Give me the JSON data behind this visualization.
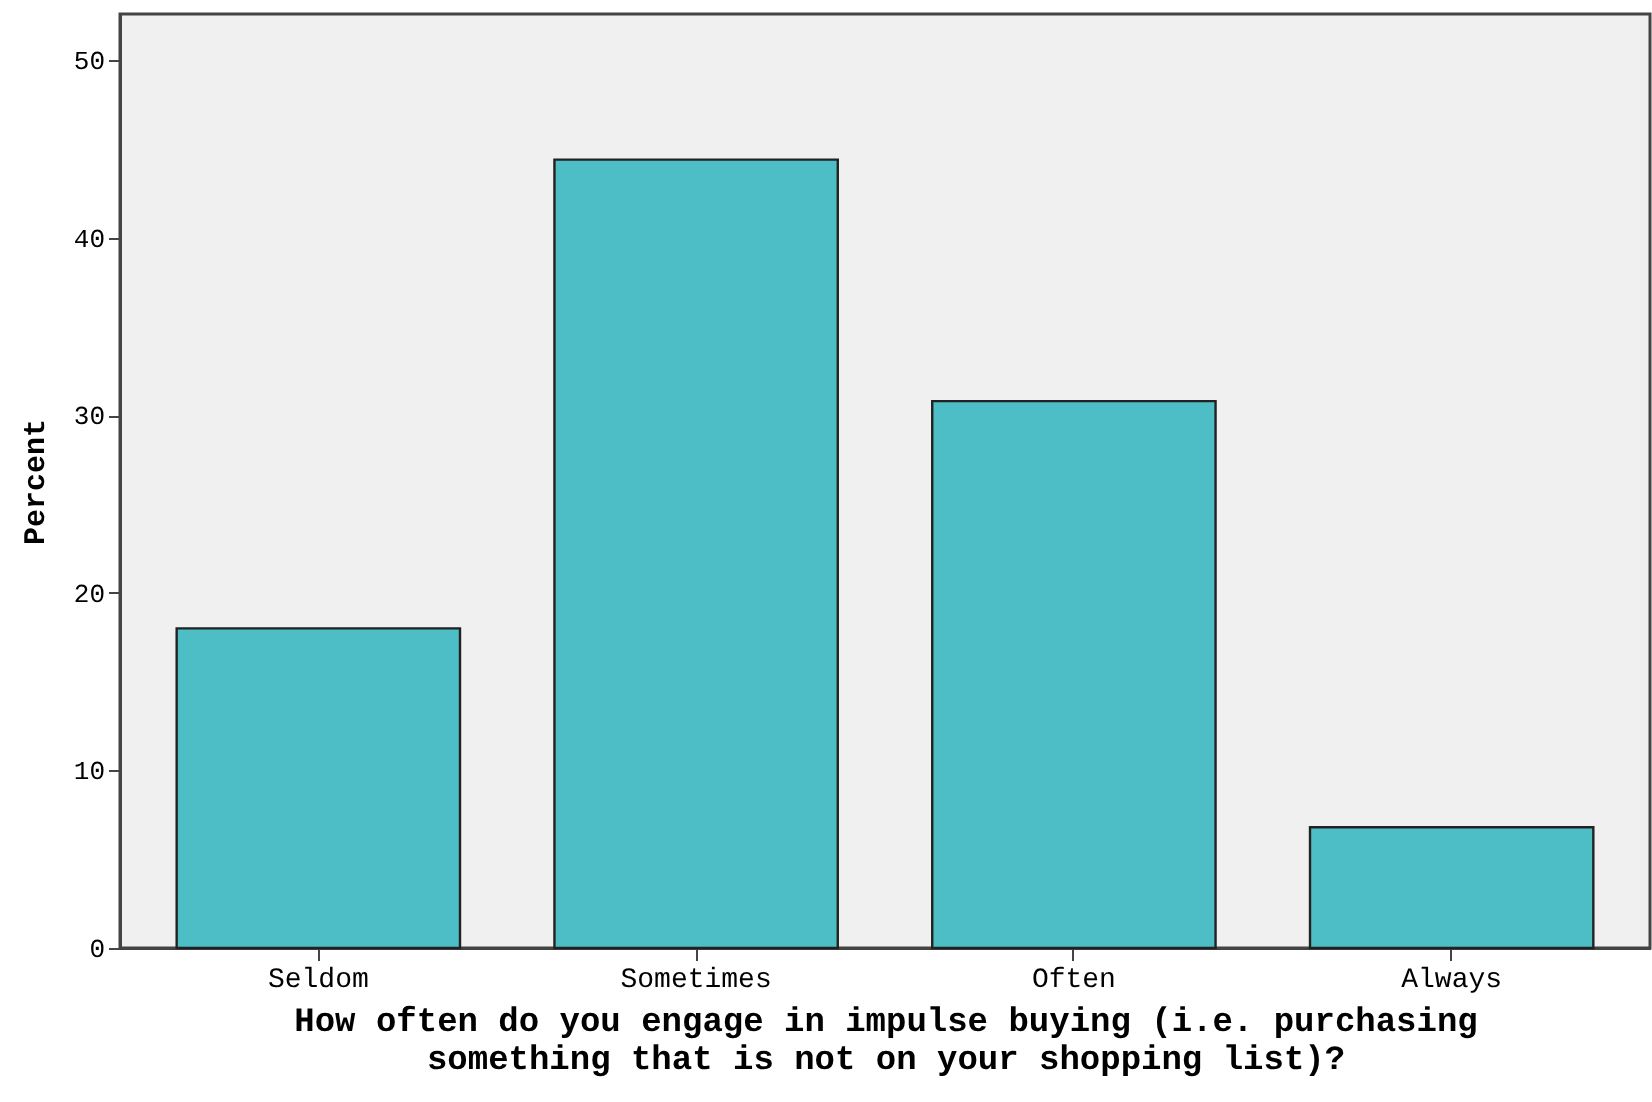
{
  "chart_data": {
    "type": "bar",
    "xlabel": "How often do you engage in impulse buying (i.e. purchasing\nsomething that is not on your shopping list)?",
    "ylabel": "Percent",
    "categories": [
      "Seldom",
      "Sometimes",
      "Often",
      "Always"
    ],
    "values": [
      18.0,
      44.4,
      30.8,
      6.8
    ],
    "color": "#4dbec6",
    "ylim": [
      0,
      52.6
    ],
    "yticks": [
      0,
      10,
      20,
      30,
      40,
      50
    ],
    "grid": false
  }
}
